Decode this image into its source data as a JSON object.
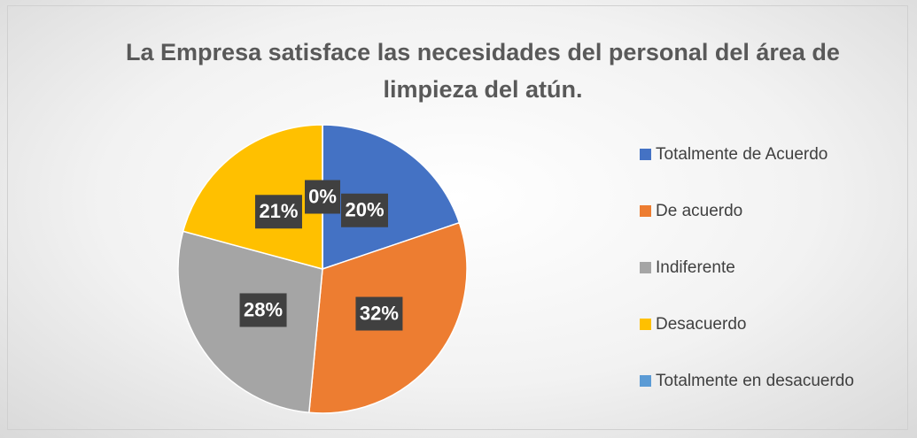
{
  "chart_data": {
    "type": "pie",
    "title": "La Empresa satisface las necesidades del personal del área de limpieza del atún.",
    "categories": [
      "Totalmente de Acuerdo",
      "De acuerdo",
      "Indiferente",
      "Desacuerdo",
      "Totalmente en desacuerdo"
    ],
    "values": [
      20,
      32,
      28,
      21,
      0
    ],
    "value_labels": [
      "20%",
      "32%",
      "28%",
      "21%",
      "0%"
    ],
    "colors": [
      "#4472c4",
      "#ed7d31",
      "#a5a5a5",
      "#ffc000",
      "#5b9bd5"
    ],
    "legend": "right"
  }
}
